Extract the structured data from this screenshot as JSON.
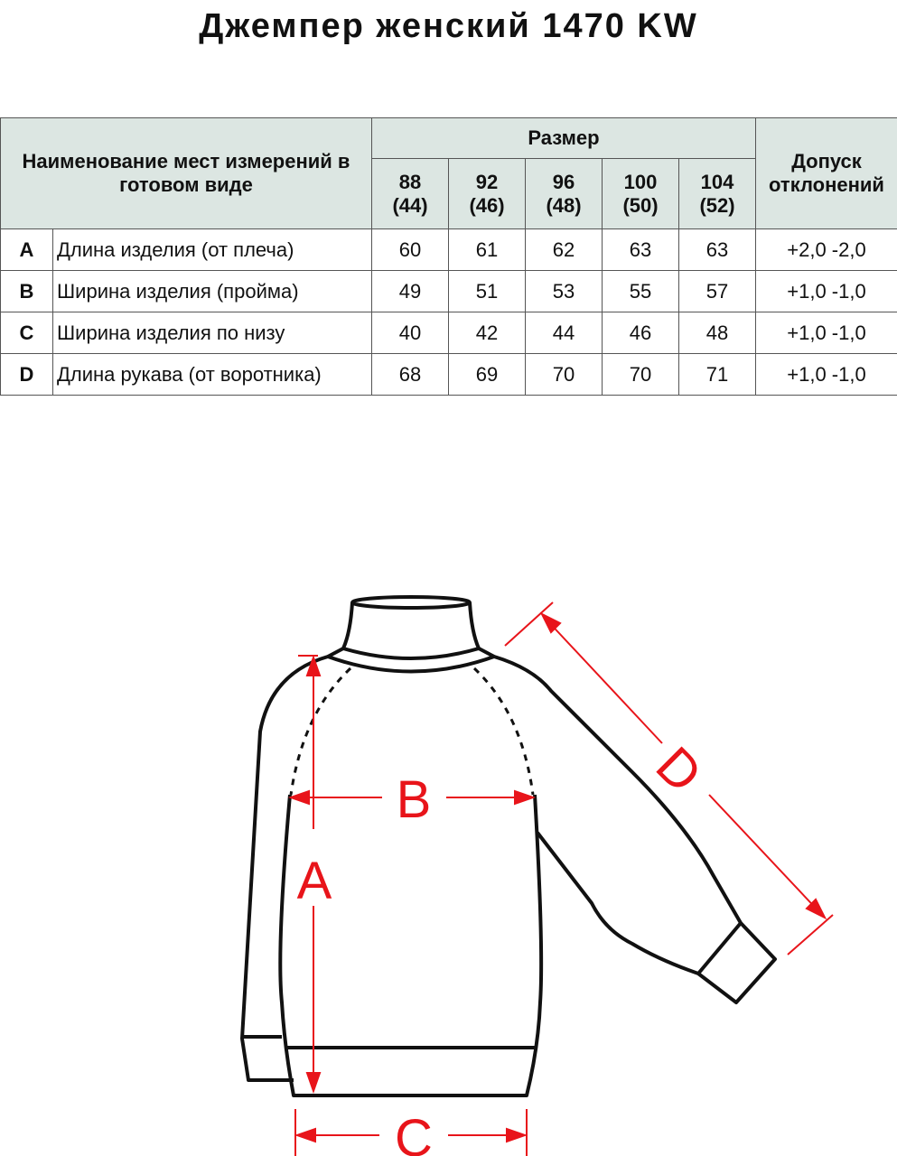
{
  "title": "Джемпер женский 1470 KW",
  "table": {
    "header_name": "Наименование мест измерений в готовом виде",
    "header_size": "Размер",
    "header_tolerance": "Допуск отклонений",
    "sizes": [
      {
        "top": "88",
        "bottom": "(44)"
      },
      {
        "top": "92",
        "bottom": "(46)"
      },
      {
        "top": "96",
        "bottom": "(48)"
      },
      {
        "top": "100",
        "bottom": "(50)"
      },
      {
        "top": "104",
        "bottom": "(52)"
      }
    ],
    "rows": [
      {
        "letter": "A",
        "name": "Длина изделия (от плеча)",
        "values": [
          "60",
          "61",
          "62",
          "63",
          "63"
        ],
        "tolerance": "+2,0 -2,0"
      },
      {
        "letter": "B",
        "name": "Ширина изделия (пройма)",
        "values": [
          "49",
          "51",
          "53",
          "55",
          "57"
        ],
        "tolerance": "+1,0 -1,0"
      },
      {
        "letter": "C",
        "name": "Ширина изделия по низу",
        "values": [
          "40",
          "42",
          "44",
          "46",
          "48"
        ],
        "tolerance": "+1,0 -1,0"
      },
      {
        "letter": "D",
        "name": "Длина рукава (от воротника)",
        "values": [
          "68",
          "69",
          "70",
          "70",
          "71"
        ],
        "tolerance": "+1,0 -1,0"
      }
    ]
  },
  "diagram": {
    "labels": {
      "a": "A",
      "b": "B",
      "c": "C",
      "d": "D"
    },
    "measure_color": "#e8141a"
  },
  "colors": {
    "header_bg": "#dce6e2"
  }
}
